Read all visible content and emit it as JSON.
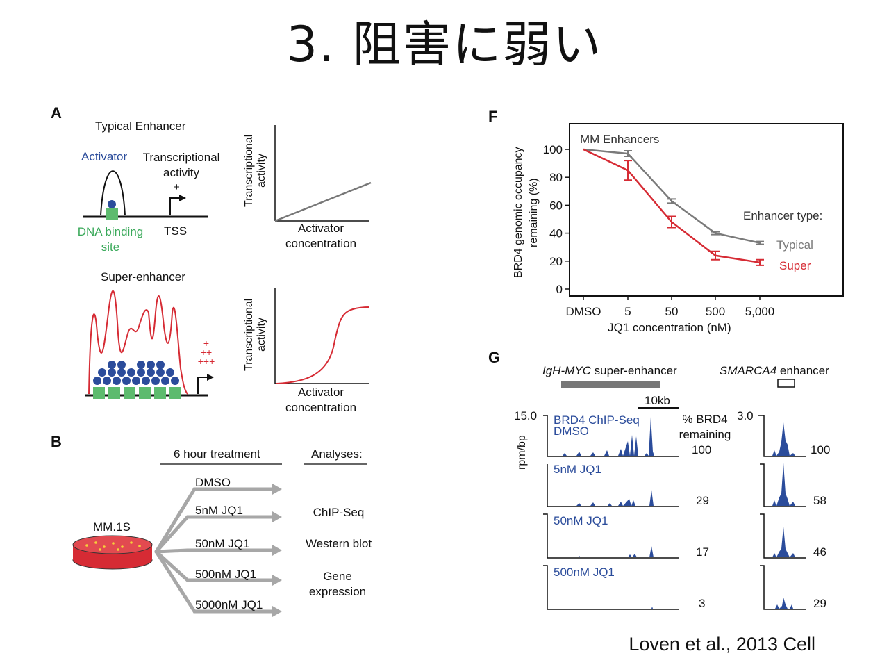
{
  "slide": {
    "title": "3. 阻害に弱い",
    "citation": "Loven et al., 2013 Cell"
  },
  "panelA": {
    "letter": "A",
    "typical_title": "Typical Enhancer",
    "activator": "Activator",
    "transcriptional_activity": "Transcriptional activity",
    "plus": "+",
    "dna_binding_site": "DNA binding site",
    "tss": "TSS",
    "super_title": "Super-enhancer",
    "plus_lines": [
      "+",
      "++",
      "+++"
    ],
    "y_axis": "Transcriptional activity",
    "x_axis": "Activator concentration"
  },
  "panelB": {
    "letter": "B",
    "treatment_header": "6 hour treatment",
    "analyses_header": "Analyses:",
    "cell_line": "MM.1S",
    "treatments": [
      "DMSO",
      "5nM JQ1",
      "50nM JQ1",
      "500nM JQ1",
      "5000nM JQ1"
    ],
    "analyses": [
      "ChIP-Seq",
      "Western blot",
      "Gene expression"
    ]
  },
  "panelF": {
    "letter": "F",
    "chart_data": {
      "type": "line",
      "title": "MM Enhancers",
      "categories": [
        "DMSO",
        "5",
        "50",
        "500",
        "5,000"
      ],
      "xlabel": "JQ1 concentration (nM)",
      "ylabel": "BRD4 genomic occupancy remaining (%)",
      "yticks": [
        "0",
        "20",
        "40",
        "60",
        "80",
        "100"
      ],
      "ylim": [
        0,
        100
      ],
      "legend_title": "Enhancer type:",
      "legend_placement": "right",
      "series": [
        {
          "name": "Typical",
          "color": "#7a7a7a",
          "values": [
            100,
            97,
            63,
            40,
            33
          ],
          "errors": [
            0,
            2,
            1.5,
            1,
            1
          ]
        },
        {
          "name": "Super",
          "color": "#d62b34",
          "values": [
            100,
            85,
            48,
            24,
            19
          ],
          "errors": [
            0,
            7,
            4,
            3,
            2
          ]
        }
      ]
    }
  },
  "panelG": {
    "letter": "G",
    "myc_label_italic": "IgH-MYC",
    "myc_label_rest": " super-enhancer",
    "smarca_label_italic": "SMARCA4",
    "smarca_label_rest": " enhancer",
    "scale": "10kb",
    "y_max_left": "15.0",
    "y_max_right": "3.0",
    "y_unit": "rpm/bp",
    "track_header": "BRD4 ChIP-Seq",
    "pct_header": "% BRD4 remaining",
    "tracks": [
      {
        "label": "DMSO",
        "left_pct": "100",
        "right_pct": "100"
      },
      {
        "label": "5nM JQ1",
        "left_pct": "29",
        "right_pct": "58"
      },
      {
        "label": "50nM JQ1",
        "left_pct": "17",
        "right_pct": "46"
      },
      {
        "label": "500nM JQ1",
        "left_pct": "3",
        "right_pct": "29"
      }
    ]
  }
}
